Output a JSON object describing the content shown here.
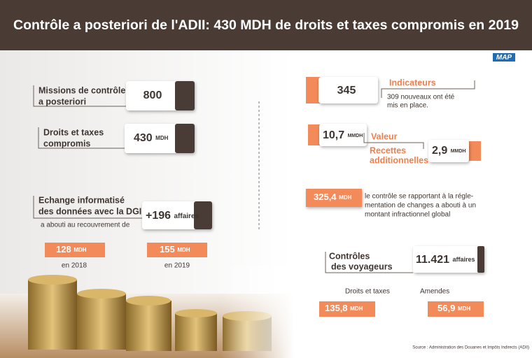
{
  "header": {
    "title": "Contrôle a posteriori de l'ADII: 430 MDH de droits et taxes compromis en 2019"
  },
  "logo": "MAP",
  "left": {
    "missions": {
      "label_lines": [
        "Missions de contrôle",
        "a posteriori"
      ],
      "value": "800"
    },
    "droits": {
      "label_lines": [
        "Droits et taxes",
        "compromis"
      ],
      "value": "430",
      "unit": "MDH"
    },
    "echange": {
      "label_lines": [
        "Echange informatisé",
        "des données avec la DGI"
      ],
      "sub": "a abouti au recouvrement de",
      "value": "+196",
      "unit": "affaires"
    },
    "years": [
      {
        "value": "128",
        "unit": "MDH",
        "year": "en 2018"
      },
      {
        "value": "155",
        "unit": "MDH",
        "year": "en 2019"
      }
    ]
  },
  "right": {
    "indicateurs": {
      "value": "345",
      "title": "Indicateurs",
      "desc_lines": [
        "309 nouveaux ont été",
        "mis en place."
      ]
    },
    "valeur": {
      "value": "10,7",
      "unit": "MMDH",
      "title": "Valeur",
      "sub_lines": [
        "Recettes",
        "additionnelles"
      ],
      "sub_value": "2,9",
      "sub_unit": "MMDH"
    },
    "change": {
      "value": "325,4",
      "unit": "MDH",
      "desc_lines": [
        "le contrôle se rapportant à la régle-",
        "mentation de changes a abouti à un",
        "montant infractionnel global"
      ]
    },
    "voyageurs": {
      "label_lines": [
        "Contrôles",
        "des voyageurs"
      ],
      "value": "11.421",
      "unit": "affaires",
      "items": [
        {
          "label": "Droits et taxes",
          "value": "135,8",
          "unit": "MDH"
        },
        {
          "label": "Amendes",
          "value": "56,9",
          "unit": "MDH"
        }
      ]
    }
  },
  "source": "Source : Administration des Douanes et Impôts Indirects (ADII)"
}
